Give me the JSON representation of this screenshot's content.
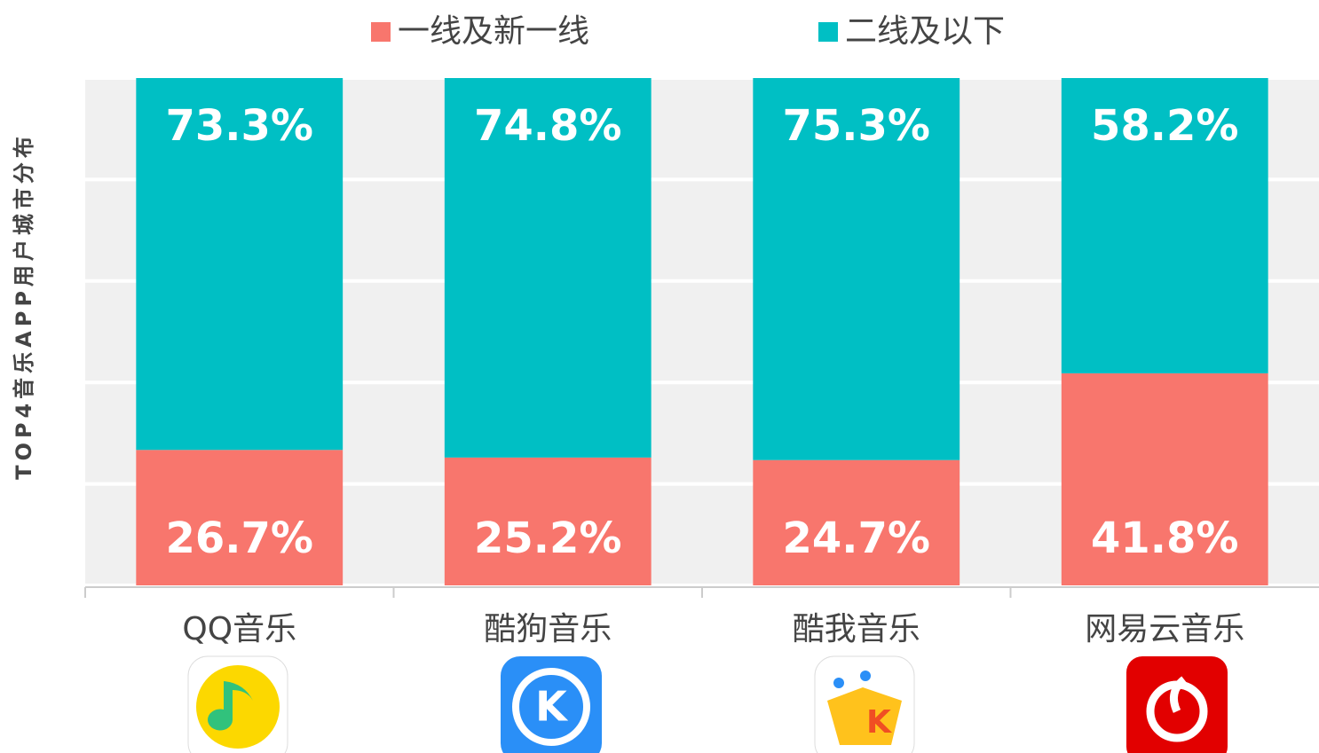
{
  "chart_data": {
    "type": "stacked_bar",
    "y_label": "TOP4音乐APP用户城市分布",
    "categories": [
      "QQ音乐",
      "酷狗音乐",
      "酷我音乐",
      "网易云音乐"
    ],
    "series": [
      {
        "name": "一线及新一线",
        "color": "#f8766d",
        "values": [
          26.7,
          25.2,
          24.7,
          41.8
        ],
        "value_labels": [
          "26.7%",
          "25.2%",
          "24.7%",
          "41.8%"
        ]
      },
      {
        "name": "二线及以下",
        "color": "#00bfc4",
        "values": [
          73.3,
          74.8,
          75.3,
          58.2
        ],
        "value_labels": [
          "73.3%",
          "74.8%",
          "75.3%",
          "58.2%"
        ]
      }
    ],
    "ylim": [
      0,
      100
    ],
    "yticks": [
      0,
      20,
      40,
      60,
      80,
      100
    ],
    "grid": true
  }
}
